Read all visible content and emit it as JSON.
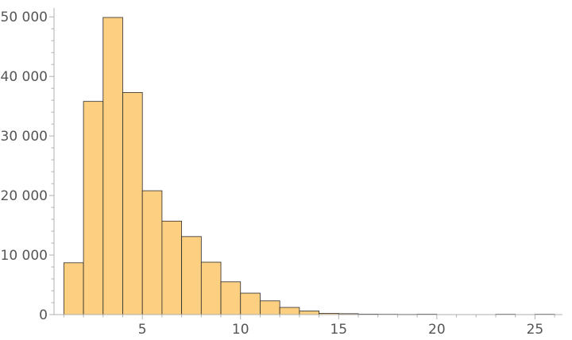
{
  "chart_data": {
    "type": "bar",
    "title": "",
    "xlabel": "",
    "ylabel": "",
    "bin_width": 1,
    "bins": [
      {
        "start": 1,
        "end": 2,
        "count": 8700
      },
      {
        "start": 2,
        "end": 3,
        "count": 35800
      },
      {
        "start": 3,
        "end": 4,
        "count": 49900
      },
      {
        "start": 4,
        "end": 5,
        "count": 37300
      },
      {
        "start": 5,
        "end": 6,
        "count": 20800
      },
      {
        "start": 6,
        "end": 7,
        "count": 15700
      },
      {
        "start": 7,
        "end": 8,
        "count": 13100
      },
      {
        "start": 8,
        "end": 9,
        "count": 8800
      },
      {
        "start": 9,
        "end": 10,
        "count": 5500
      },
      {
        "start": 10,
        "end": 11,
        "count": 3600
      },
      {
        "start": 11,
        "end": 12,
        "count": 2300
      },
      {
        "start": 12,
        "end": 13,
        "count": 1200
      },
      {
        "start": 13,
        "end": 14,
        "count": 600
      },
      {
        "start": 14,
        "end": 15,
        "count": 200
      },
      {
        "start": 15,
        "end": 16,
        "count": 150
      },
      {
        "start": 16,
        "end": 17,
        "count": 80
      },
      {
        "start": 17,
        "end": 18,
        "count": 60
      },
      {
        "start": 18,
        "end": 19,
        "count": 40
      },
      {
        "start": 19,
        "end": 20,
        "count": 70
      },
      {
        "start": 23,
        "end": 24,
        "count": 60
      },
      {
        "start": 25,
        "end": 26,
        "count": 60
      }
    ],
    "xlim": [
      0.5,
      26.4
    ],
    "ylim": [
      0,
      51500
    ],
    "x_ticks": [
      5,
      10,
      15,
      20,
      25
    ],
    "x_tick_labels": [
      "5",
      "10",
      "15",
      "20",
      "25"
    ],
    "y_ticks": [
      0,
      10000,
      20000,
      30000,
      40000,
      50000
    ],
    "y_tick_labels": [
      "0",
      "10 000",
      "20 000",
      "30 000",
      "40 000",
      "50 000"
    ],
    "grid": false,
    "legend": "none",
    "bar_color": "#fdd081",
    "edge_color": "#2b2b2b",
    "axis_color": "#b0b0b0",
    "label_color": "#555555"
  }
}
